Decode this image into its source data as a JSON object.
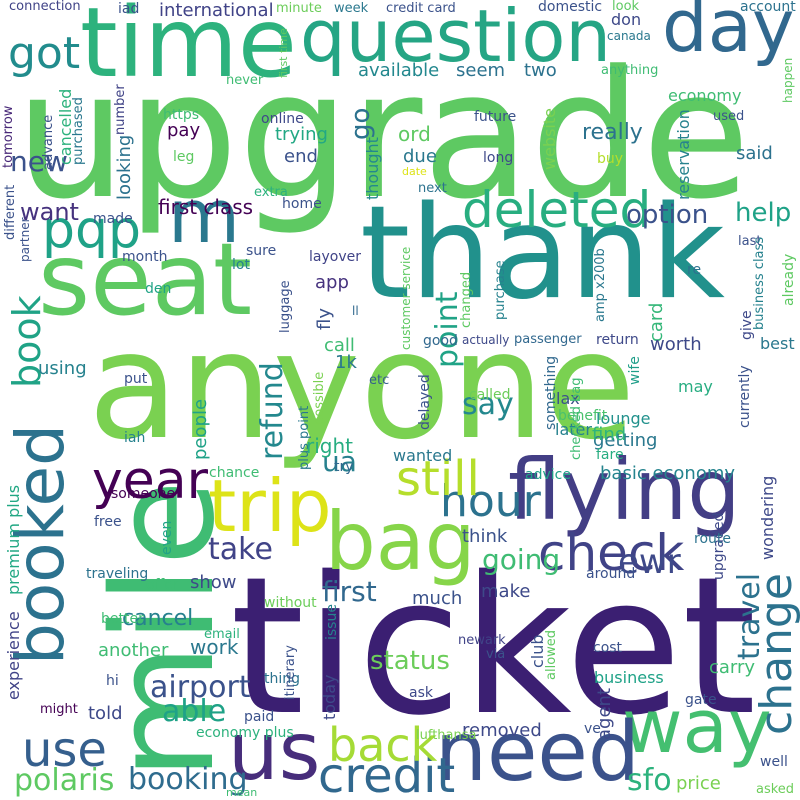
{
  "words": [
    {
      "text": "upgrade",
      "color": "#5ec962"
    },
    {
      "text": "ticket",
      "color": "#3b1f72"
    },
    {
      "text": "anyone",
      "color": "#7ad151"
    },
    {
      "text": "thank",
      "color": "#21918c"
    },
    {
      "text": "mile",
      "color": "#3fbc73"
    },
    {
      "text": "time",
      "color": "#2db27d"
    },
    {
      "text": "seat",
      "color": "#5ec962"
    },
    {
      "text": "question",
      "color": "#25a584"
    },
    {
      "text": "booked",
      "color": "#2c728e"
    },
    {
      "text": "flying",
      "color": "#433e85"
    },
    {
      "text": "way",
      "color": "#44bf70"
    },
    {
      "text": "need",
      "color": "#3b528b"
    },
    {
      "text": "bag",
      "color": "#86d549"
    },
    {
      "text": "us",
      "color": "#472d7b"
    },
    {
      "text": "trip",
      "color": "#dde318"
    },
    {
      "text": "day",
      "color": "#31688e"
    },
    {
      "text": "deleted",
      "color": "#28ae80"
    },
    {
      "text": "change",
      "color": "#2c728e"
    },
    {
      "text": "check",
      "color": "#404387"
    },
    {
      "text": "credit",
      "color": "#31688e"
    },
    {
      "text": "m",
      "color": "#2a788e"
    },
    {
      "text": "year",
      "color": "#440154"
    },
    {
      "text": "back",
      "color": "#a5db36"
    },
    {
      "text": "pqp",
      "color": "#1fa287"
    },
    {
      "text": "book",
      "color": "#20a386"
    },
    {
      "text": "got",
      "color": "#228c8d"
    },
    {
      "text": "hour",
      "color": "#2c728e"
    },
    {
      "text": "still",
      "color": "#b5de2b"
    },
    {
      "text": "use",
      "color": "#355f8d"
    },
    {
      "text": "status",
      "color": "#6ccd5a"
    },
    {
      "text": "airport",
      "color": "#3b528b"
    },
    {
      "text": "booking",
      "color": "#2f6c8e"
    },
    {
      "text": "polaris",
      "color": "#5ec962"
    },
    {
      "text": "travel",
      "color": "#2c728e"
    },
    {
      "text": "refund",
      "color": "#23888e"
    },
    {
      "text": "ewr",
      "color": "#3e4989"
    },
    {
      "text": "say",
      "color": "#23888e"
    },
    {
      "text": "going",
      "color": "#3fbc73"
    },
    {
      "text": "first",
      "color": "#31688e"
    },
    {
      "text": "point",
      "color": "#20a386"
    },
    {
      "text": "sfo",
      "color": "#2db27d"
    },
    {
      "text": "able",
      "color": "#1fa287"
    },
    {
      "text": "take",
      "color": "#404387"
    },
    {
      "text": "option",
      "color": "#3b528b"
    },
    {
      "text": "help",
      "color": "#1fa287"
    },
    {
      "text": "cancel",
      "color": "#26818e"
    },
    {
      "text": "want",
      "color": "#46327e"
    },
    {
      "text": "go",
      "color": "#2c728e"
    },
    {
      "text": "new",
      "color": "#3b528b"
    },
    {
      "text": "ua",
      "color": "#27808e"
    },
    {
      "text": "first class",
      "color": "#440154"
    },
    {
      "text": "really",
      "color": "#2c728e"
    },
    {
      "text": "available",
      "color": "#23888e"
    },
    {
      "text": "seem",
      "color": "#2c728e"
    },
    {
      "text": "two",
      "color": "#2c728e"
    },
    {
      "text": "economy",
      "color": "#3fbc73"
    },
    {
      "text": "international",
      "color": "#404387"
    },
    {
      "text": "basic economy",
      "color": "#25848e"
    },
    {
      "text": "another",
      "color": "#3fbc73"
    },
    {
      "text": "work",
      "color": "#2a788e"
    },
    {
      "text": "people",
      "color": "#1fa287"
    },
    {
      "text": "right",
      "color": "#27ad81"
    },
    {
      "text": "card",
      "color": "#35b779"
    },
    {
      "text": "worth",
      "color": "#3e4989"
    },
    {
      "text": "call",
      "color": "#3fbc73"
    },
    {
      "text": "1k",
      "color": "#2a788e"
    },
    {
      "text": "fly",
      "color": "#3b528b"
    },
    {
      "text": "app",
      "color": "#46327e"
    },
    {
      "text": "getting",
      "color": "#2a788e"
    },
    {
      "text": "find",
      "color": "#2fb47c"
    },
    {
      "text": "carry",
      "color": "#3fbc73"
    },
    {
      "text": "agent",
      "color": "#3e4989"
    },
    {
      "text": "said",
      "color": "#2c728e"
    },
    {
      "text": "reservation",
      "color": "#26828e"
    },
    {
      "text": "due",
      "color": "#2a788e"
    },
    {
      "text": "thought",
      "color": "#23888e"
    },
    {
      "text": "end",
      "color": "#3b528b"
    },
    {
      "text": "trying",
      "color": "#22a884"
    },
    {
      "text": "pay",
      "color": "#440154"
    },
    {
      "text": "looking",
      "color": "#2c728e"
    },
    {
      "text": "ord",
      "color": "#5ec962"
    },
    {
      "text": "website",
      "color": "#7ad151"
    },
    {
      "text": "much",
      "color": "#3b528b"
    },
    {
      "text": "make",
      "color": "#3e4989"
    },
    {
      "text": "think",
      "color": "#3b528b"
    },
    {
      "text": "show",
      "color": "#3e4989"
    },
    {
      "text": "told",
      "color": "#3e4989"
    },
    {
      "text": "using",
      "color": "#26828e"
    },
    {
      "text": "today",
      "color": "#3e4989"
    },
    {
      "text": "removed",
      "color": "#3e4989"
    },
    {
      "text": "price",
      "color": "#7ad151"
    },
    {
      "text": "business",
      "color": "#1fa287"
    },
    {
      "text": "upgraded",
      "color": "#3e4989"
    },
    {
      "text": "wondering",
      "color": "#3e4989"
    },
    {
      "text": "premium plus",
      "color": "#22a884"
    },
    {
      "text": "experience",
      "color": "#404387"
    },
    {
      "text": "issue",
      "color": "#26828e"
    },
    {
      "text": "club",
      "color": "#3b528b"
    },
    {
      "text": "lounge",
      "color": "#21918c"
    },
    {
      "text": "wanted",
      "color": "#2a788e"
    },
    {
      "text": "advice",
      "color": "#1fa287"
    },
    {
      "text": "fare",
      "color": "#27ad81"
    },
    {
      "text": "delayed",
      "color": "#3b528b"
    },
    {
      "text": "later",
      "color": "#26828e"
    },
    {
      "text": "lax",
      "color": "#3b528b"
    },
    {
      "text": "benefit",
      "color": "#4ac16d"
    },
    {
      "text": "called",
      "color": "#6ccd5a"
    },
    {
      "text": "checked bag",
      "color": "#3fbc73"
    },
    {
      "text": "something",
      "color": "#31688e"
    },
    {
      "text": "wife",
      "color": "#1f9e89"
    },
    {
      "text": "may",
      "color": "#27ad81"
    },
    {
      "text": "currently",
      "color": "#3b528b"
    },
    {
      "text": "best",
      "color": "#2a788e"
    },
    {
      "text": "return",
      "color": "#3e4989"
    },
    {
      "text": "give",
      "color": "#3e4989"
    },
    {
      "text": "already",
      "color": "#5ec962"
    },
    {
      "text": "last",
      "color": "#3b528b"
    },
    {
      "text": "business class",
      "color": "#26828e"
    },
    {
      "text": "amp x200b",
      "color": "#2a788e"
    },
    {
      "text": "re",
      "color": "#2c728e"
    },
    {
      "text": "purchase",
      "color": "#26828e"
    },
    {
      "text": "changed",
      "color": "#5ec962"
    },
    {
      "text": "customer service",
      "color": "#5ec962"
    },
    {
      "text": "actually",
      "color": "#3e4989"
    },
    {
      "text": "passenger",
      "color": "#31688e"
    },
    {
      "text": "good",
      "color": "#31688e"
    },
    {
      "text": "etc",
      "color": "#355f8d"
    },
    {
      "text": "possible",
      "color": "#7ad151"
    },
    {
      "text": "plus point",
      "color": "#2a788e"
    },
    {
      "text": "layover",
      "color": "#404387"
    },
    {
      "text": "sure",
      "color": "#3b528b"
    },
    {
      "text": "lot",
      "color": "#26828e"
    },
    {
      "text": "luggage",
      "color": "#3b528b"
    },
    {
      "text": "ll",
      "color": "#31688e"
    },
    {
      "text": "home",
      "color": "#3b528b"
    },
    {
      "text": "month",
      "color": "#3b528b"
    },
    {
      "text": "den",
      "color": "#20a386"
    },
    {
      "text": "made",
      "color": "#3b528b"
    },
    {
      "text": "extra",
      "color": "#2db27d"
    },
    {
      "text": "partner",
      "color": "#3b528b"
    },
    {
      "text": "different",
      "color": "#3b528b"
    },
    {
      "text": "tomorrow",
      "color": "#482878"
    },
    {
      "text": "advance",
      "color": "#3b528b"
    },
    {
      "text": "cancelled",
      "color": "#2db27d"
    },
    {
      "text": "purchased",
      "color": "#2a788e"
    },
    {
      "text": "number",
      "color": "#404387"
    },
    {
      "text": "leg",
      "color": "#5ec962"
    },
    {
      "text": "https",
      "color": "#3fbc73"
    },
    {
      "text": "online",
      "color": "#3e4989"
    },
    {
      "text": "future",
      "color": "#3b528b"
    },
    {
      "text": "long",
      "color": "#3e4989"
    },
    {
      "text": "buy",
      "color": "#b5de2b"
    },
    {
      "text": "date",
      "color": "#dde318"
    },
    {
      "text": "next",
      "color": "#2c728e"
    },
    {
      "text": "used",
      "color": "#3b528b"
    },
    {
      "text": "don",
      "color": "#3e4989"
    },
    {
      "text": "look",
      "color": "#5ec962"
    },
    {
      "text": "account",
      "color": "#2c728e"
    },
    {
      "text": "canada",
      "color": "#2a788e"
    },
    {
      "text": "domestic",
      "color": "#3b528b"
    },
    {
      "text": "anything",
      "color": "#3fbc73"
    },
    {
      "text": "happen",
      "color": "#5ec962"
    },
    {
      "text": "connection",
      "color": "#404387"
    },
    {
      "text": "iad",
      "color": "#3b528b"
    },
    {
      "text": "credit card",
      "color": "#3b528b"
    },
    {
      "text": "week",
      "color": "#2a788e"
    },
    {
      "text": "minute",
      "color": "#6ccd5a"
    },
    {
      "text": "first time",
      "color": "#5ec962"
    },
    {
      "text": "never",
      "color": "#3fbc73"
    },
    {
      "text": "put",
      "color": "#3b528b"
    },
    {
      "text": "iah",
      "color": "#26828e"
    },
    {
      "text": "chance",
      "color": "#3fbc73"
    },
    {
      "text": "try",
      "color": "#31688e"
    },
    {
      "text": "someone",
      "color": "#440154"
    },
    {
      "text": "free",
      "color": "#3b528b"
    },
    {
      "text": "even",
      "color": "#20a386"
    },
    {
      "text": "traveling",
      "color": "#2c728e"
    },
    {
      "text": "offer",
      "color": "#3fbc73"
    },
    {
      "text": "without",
      "color": "#6ccd5a"
    },
    {
      "text": "better",
      "color": "#3fbc73"
    },
    {
      "text": "email",
      "color": "#2db27d"
    },
    {
      "text": "hi",
      "color": "#3b528b"
    },
    {
      "text": "thing",
      "color": "#2c728e"
    },
    {
      "text": "itinerary",
      "color": "#3b528b"
    },
    {
      "text": "newark",
      "color": "#404387"
    },
    {
      "text": "via",
      "color": "#3b528b"
    },
    {
      "text": "ask",
      "color": "#3e4989"
    },
    {
      "text": "allowed",
      "color": "#5ec962"
    },
    {
      "text": "cost",
      "color": "#3b528b"
    },
    {
      "text": "gate",
      "color": "#3b528b"
    },
    {
      "text": "might",
      "color": "#440154"
    },
    {
      "text": "paid",
      "color": "#3b528b"
    },
    {
      "text": "economy plus",
      "color": "#2db27d"
    },
    {
      "text": "lufthansa",
      "color": "#7ad151"
    },
    {
      "text": "ve",
      "color": "#3b528b"
    },
    {
      "text": "route",
      "color": "#2c728e"
    },
    {
      "text": "around",
      "color": "#3b528b"
    },
    {
      "text": "well",
      "color": "#3b528b"
    },
    {
      "text": "asked",
      "color": "#6ccd5a"
    },
    {
      "text": "mean",
      "color": "#3fbc73"
    }
  ]
}
